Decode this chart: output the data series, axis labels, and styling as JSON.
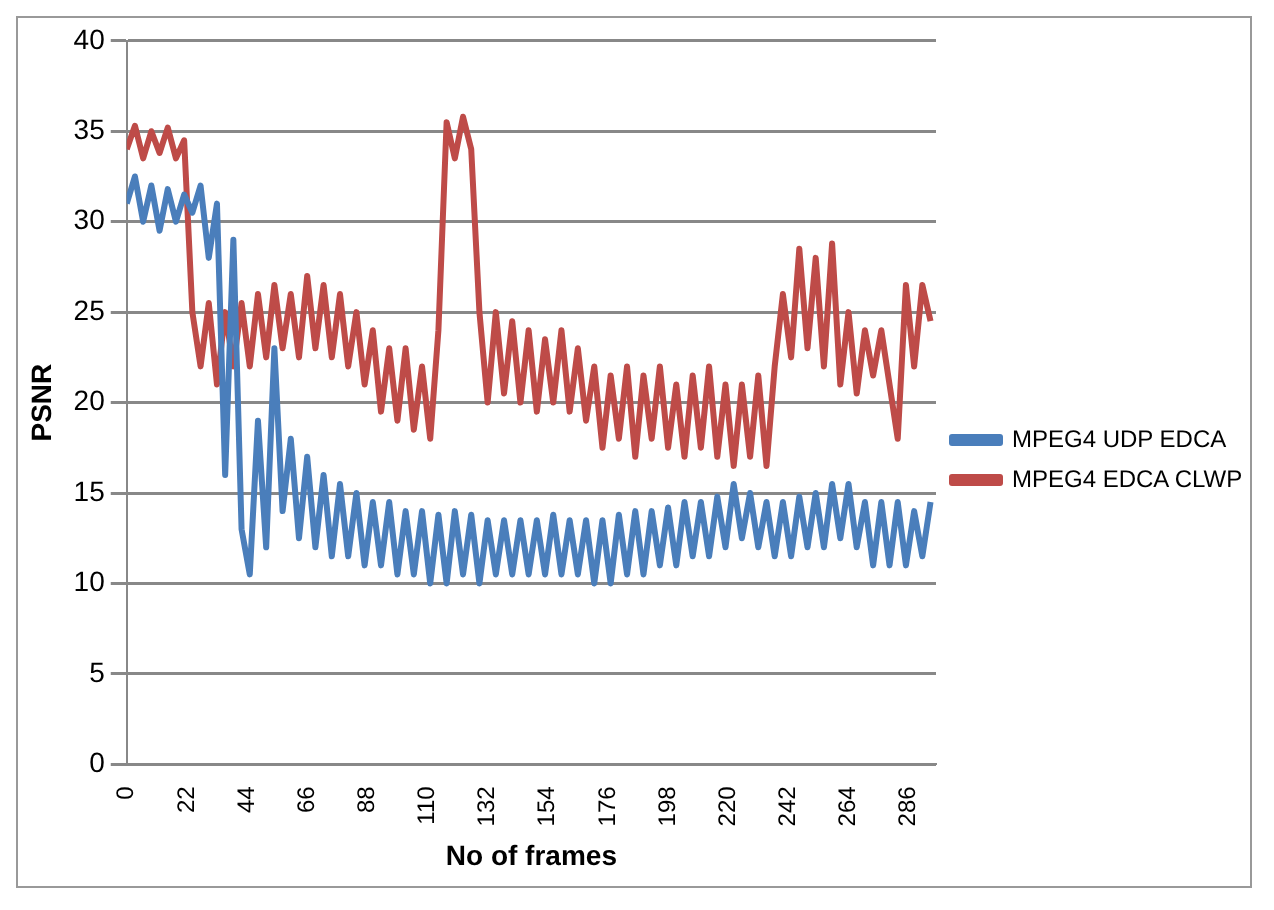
{
  "chart_data": {
    "type": "line",
    "xlabel": "No of frames",
    "ylabel": "PSNR",
    "x": [
      0,
      3,
      6,
      9,
      12,
      15,
      18,
      21,
      24,
      27,
      30,
      33,
      36,
      39,
      42,
      45,
      48,
      51,
      54,
      57,
      60,
      63,
      66,
      69,
      72,
      75,
      78,
      81,
      84,
      87,
      90,
      93,
      96,
      99,
      102,
      105,
      108,
      111,
      114,
      117,
      120,
      123,
      126,
      129,
      132,
      135,
      138,
      141,
      144,
      147,
      150,
      153,
      156,
      159,
      162,
      165,
      168,
      171,
      174,
      177,
      180,
      183,
      186,
      189,
      192,
      195,
      198,
      201,
      204,
      207,
      210,
      213,
      216,
      219,
      222,
      225,
      228,
      231,
      234,
      237,
      240,
      243,
      246,
      249,
      252,
      255,
      258,
      261,
      264,
      267,
      270,
      273,
      276,
      279,
      282,
      285,
      288,
      291,
      294
    ],
    "xlim": [
      0,
      296
    ],
    "xticks": [
      0,
      22,
      44,
      66,
      88,
      110,
      132,
      154,
      176,
      198,
      220,
      242,
      264,
      286
    ],
    "ylim": [
      0,
      40
    ],
    "yticks": [
      0,
      5,
      10,
      15,
      20,
      25,
      30,
      35,
      40
    ],
    "grid": "y",
    "legend": "right",
    "marker": "none",
    "line_style": "solid",
    "series": [
      {
        "name": "MPEG4 UDP EDCA",
        "color": "#4a7ebb",
        "values": [
          31,
          32.5,
          30,
          32,
          29.5,
          31.8,
          30,
          31.5,
          30.5,
          32,
          28,
          31,
          16,
          29,
          13,
          10.5,
          19,
          12,
          23,
          14,
          18,
          12.5,
          17,
          12,
          16,
          11.5,
          15.5,
          11.5,
          15,
          11,
          14.5,
          11,
          14.5,
          10.5,
          14,
          10.5,
          14,
          10,
          13.8,
          10,
          14,
          10.5,
          13.8,
          10,
          13.5,
          10.5,
          13.5,
          10.5,
          13.5,
          10.5,
          13.5,
          10.5,
          13.8,
          10.5,
          13.5,
          10.5,
          13.5,
          10,
          13.5,
          10,
          13.8,
          10.5,
          14,
          10.5,
          14,
          11,
          14.2,
          11,
          14.5,
          11.5,
          14.5,
          11.5,
          14.8,
          12,
          15.5,
          12.5,
          15,
          12,
          14.5,
          11.5,
          14.5,
          11.5,
          14.8,
          12,
          15,
          12,
          15.5,
          12.5,
          15.5,
          12,
          14.5,
          11,
          14.5,
          11,
          14.5,
          11,
          14,
          11.5,
          14.5
        ]
      },
      {
        "name": "MPEG4 EDCA CLWP",
        "color": "#be4b48",
        "values": [
          34,
          35.3,
          33.5,
          35,
          33.8,
          35.2,
          33.5,
          34.5,
          25,
          22,
          25.5,
          21,
          25,
          22,
          25.5,
          22,
          26,
          22.5,
          26.5,
          23,
          26,
          22.5,
          27,
          23,
          26.5,
          22.5,
          26,
          22,
          25,
          21,
          24,
          19.5,
          23,
          19,
          23,
          18.5,
          22,
          18,
          24,
          35.5,
          33.5,
          35.8,
          34,
          25,
          20,
          25,
          20.5,
          24.5,
          20,
          24,
          19.5,
          23.5,
          20,
          24,
          19.5,
          23,
          19,
          22,
          17.5,
          21.5,
          18,
          22,
          17,
          21.5,
          18,
          22,
          17.5,
          21,
          17,
          21.5,
          17.5,
          22,
          17,
          21,
          16.5,
          21,
          17,
          21.5,
          16.5,
          22,
          26,
          22.5,
          28.5,
          23,
          28,
          22,
          28.8,
          21,
          25,
          20.5,
          24,
          21.5,
          24,
          21,
          18,
          26.5,
          22,
          26.5,
          24.5
        ]
      }
    ]
  }
}
